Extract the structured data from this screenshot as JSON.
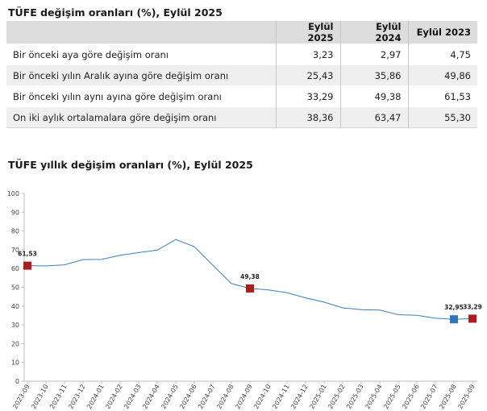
{
  "table": {
    "title": "TÜFE değişim oranları (%), Eylül 2025",
    "headers": [
      "",
      "Eylül 2025",
      "Eylül 2024",
      "Eylül 2023"
    ],
    "rows": [
      {
        "label": "Bir önceki aya göre değişim oranı",
        "values": [
          "3,23",
          "2,97",
          "4,75"
        ]
      },
      {
        "label": "Bir önceki yılın Aralık ayına göre değişim oranı",
        "values": [
          "25,43",
          "35,86",
          "49,86"
        ]
      },
      {
        "label": "Bir önceki yılın aynı ayına göre değişim oranı",
        "values": [
          "33,29",
          "49,38",
          "61,53"
        ]
      },
      {
        "label": "On iki aylık ortalamalara göre değişim oranı",
        "values": [
          "38,36",
          "63,47",
          "55,30"
        ]
      }
    ]
  },
  "chart_title": "TÜFE yıllık değişim oranları (%), Eylül 2025",
  "chart_data": {
    "type": "line",
    "x": [
      "2023-09",
      "2023-10",
      "2023-11",
      "2023-12",
      "2024-01",
      "2024-02",
      "2024-03",
      "2024-04",
      "2024-05",
      "2024-06",
      "2024-07",
      "2024-08",
      "2024-09",
      "2024-10",
      "2024-11",
      "2024-12",
      "2025-01",
      "2025-02",
      "2025-03",
      "2025-04",
      "2025-05",
      "2025-06",
      "2025-07",
      "2025-08",
      "2025-09"
    ],
    "series": [
      {
        "values": [
          61.53,
          61.36,
          61.98,
          64.77,
          64.86,
          67.07,
          68.5,
          69.8,
          75.45,
          71.6,
          61.78,
          51.97,
          49.38,
          48.58,
          47.09,
          44.38,
          42.12,
          39.05,
          38.1,
          37.86,
          35.41,
          35.05,
          33.52,
          32.95,
          33.29
        ]
      }
    ],
    "ylim": [
      0,
      100
    ],
    "yticks": [
      0,
      10,
      20,
      30,
      40,
      50,
      60,
      70,
      80,
      90,
      100
    ],
    "grid": false,
    "line_color": "#3a7fbf",
    "highlighted_points": [
      {
        "x": "2023-09",
        "label": "61,53",
        "color": "#b01c1c"
      },
      {
        "x": "2024-09",
        "label": "49,38",
        "color": "#b01c1c"
      },
      {
        "x": "2025-08",
        "label": "32,95",
        "color": "#2e75b6"
      },
      {
        "x": "2025-09",
        "label": "33,29",
        "color": "#b01c1c"
      }
    ]
  }
}
